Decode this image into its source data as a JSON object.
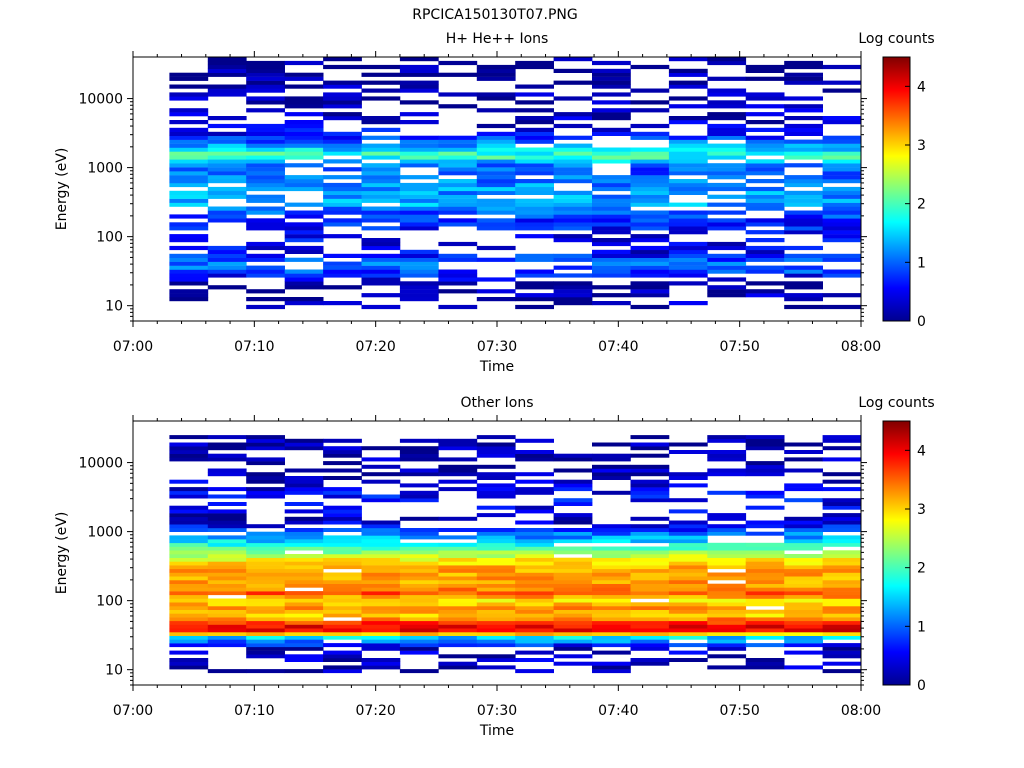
{
  "figure": {
    "title": "RPCICA150130T07.PNG"
  },
  "chart_data": [
    {
      "type": "heatmap",
      "title": "H+ He++ Ions",
      "xlabel": "Time",
      "ylabel": "Energy (eV)",
      "colorbar_label": "Log counts",
      "x_ticks": [
        "07:00",
        "07:10",
        "07:20",
        "07:30",
        "07:40",
        "07:50",
        "08:00"
      ],
      "y_ticks": [
        "10",
        "100",
        "1000",
        "10000"
      ],
      "colorbar_ticks": [
        "0",
        "1",
        "2",
        "3",
        "4"
      ],
      "xlim": [
        "07:00",
        "08:00"
      ],
      "ylim": [
        6,
        40000
      ],
      "yscale": "log",
      "clim": [
        0,
        4.5
      ],
      "colormap": "jet",
      "profile": {
        "energies_eV": [
          10,
          15,
          20,
          30,
          40,
          60,
          100,
          200,
          300,
          500,
          1000,
          1500,
          2000,
          3000,
          5000,
          10000,
          20000,
          40000
        ],
        "log_counts": [
          0.2,
          0.2,
          0,
          0.8,
          1.1,
          0.5,
          0.5,
          0.8,
          1.3,
          1.2,
          0.9,
          2.0,
          1.3,
          0.6,
          0.3,
          0.2,
          0.1,
          0.1
        ]
      }
    },
    {
      "type": "heatmap",
      "title": "Other Ions",
      "xlabel": "Time",
      "ylabel": "Energy (eV)",
      "colorbar_label": "Log counts",
      "x_ticks": [
        "07:00",
        "07:10",
        "07:20",
        "07:30",
        "07:40",
        "07:50",
        "08:00"
      ],
      "y_ticks": [
        "10",
        "100",
        "1000",
        "10000"
      ],
      "colorbar_ticks": [
        "0",
        "1",
        "2",
        "3",
        "4"
      ],
      "xlim": [
        "07:00",
        "08:00"
      ],
      "ylim": [
        6,
        40000
      ],
      "yscale": "log",
      "clim": [
        0,
        4.5
      ],
      "colormap": "jet",
      "profile": {
        "energies_eV": [
          10,
          15,
          20,
          25,
          30,
          35,
          40,
          50,
          60,
          80,
          100,
          130,
          150,
          200,
          300,
          400,
          500,
          700,
          1000,
          1500,
          2000,
          3000,
          5000,
          20000
        ],
        "log_counts": [
          0.2,
          0.3,
          0.3,
          1.0,
          1.6,
          3.9,
          4.1,
          3.6,
          3.0,
          3.3,
          2.9,
          3.6,
          3.3,
          3.2,
          3.2,
          2.8,
          2.3,
          1.6,
          0.9,
          0.2,
          0.4,
          0.6,
          0.3,
          0.1
        ]
      }
    }
  ]
}
